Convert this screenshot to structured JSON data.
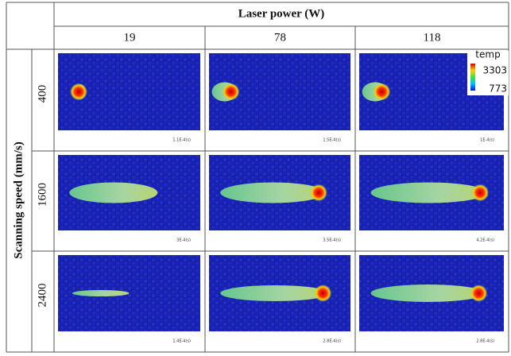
{
  "header": {
    "column_title": "Laser power (W)",
    "columns": [
      "19",
      "78",
      "118"
    ],
    "row_title": "Scanning speed (mm/s)",
    "rows": [
      "400",
      "1600",
      "2400"
    ]
  },
  "cells": [
    [
      "1.1E-4(s)",
      "1.5E-4(s)",
      "1E-4(s)"
    ],
    [
      "3E-4(s)",
      "3.5E-4(s)",
      "4.2E-4(s)"
    ],
    [
      "1.4E-4(s)",
      "2.8E-4(s)",
      "2.8E-4(s)"
    ]
  ],
  "legend": {
    "title": "temp",
    "max": 3303,
    "min": 773
  }
}
